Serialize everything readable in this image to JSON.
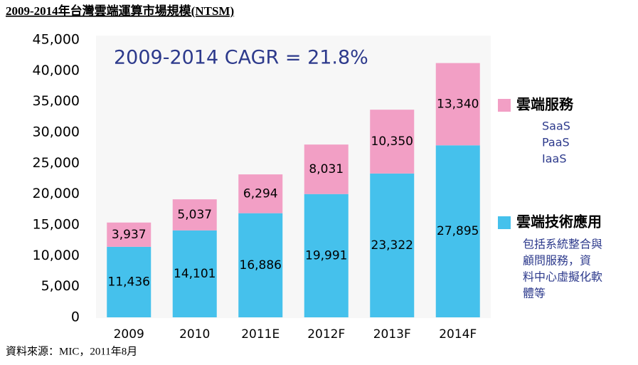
{
  "chart_data": {
    "type": "stacked_bar",
    "title": "2009-2014年台灣雲端運算市場規模(NTSM)",
    "annotation": "2009-2014 CAGR = 21.8%",
    "source": "資料來源：MIC，2011年8月",
    "categories": [
      "2009",
      "2010",
      "2011E",
      "2012F",
      "2013F",
      "2014F"
    ],
    "ylim": [
      0,
      45000
    ],
    "yticks": [
      0,
      {
        "value": 5000,
        "label": "5,000"
      },
      {
        "value": 10000,
        "label": "10,000"
      },
      {
        "value": 15000,
        "label": "15,000"
      },
      {
        "value": 20000,
        "label": "20,000"
      },
      {
        "value": 25000,
        "label": "25,000"
      },
      {
        "value": 30000,
        "label": "30,000"
      },
      {
        "value": 35000,
        "label": "35,000"
      },
      {
        "value": 40000,
        "label": "40,000"
      },
      {
        "value": 45000,
        "label": "45,000"
      }
    ],
    "series": [
      {
        "name": "雲端技術應用",
        "color": "#45c1ec",
        "values": [
          11436,
          14101,
          16886,
          19991,
          23322,
          27895
        ],
        "value_labels": [
          "11,436",
          "14,101",
          "16,886",
          "19,991",
          "23,322",
          "27,895"
        ],
        "notes": [
          "包括系統整合與",
          "顧問服務，資",
          "料中心虛擬化軟",
          "體等"
        ]
      },
      {
        "name": "雲端服務",
        "color": "#f29fc5",
        "values": [
          3937,
          5037,
          6294,
          8031,
          10350,
          13340
        ],
        "value_labels": [
          "3,937",
          "5,037",
          "6,294",
          "8,031",
          "10,350",
          "13,340"
        ],
        "notes": [
          "SaaS",
          "PaaS",
          "IaaS"
        ]
      }
    ]
  }
}
